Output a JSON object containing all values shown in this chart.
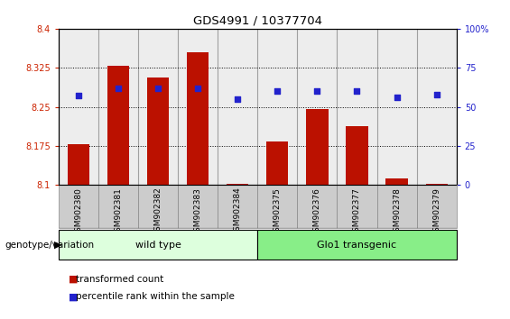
{
  "title": "GDS4991 / 10377704",
  "samples": [
    "GSM902380",
    "GSM902381",
    "GSM902382",
    "GSM902383",
    "GSM902384",
    "GSM902375",
    "GSM902376",
    "GSM902377",
    "GSM902378",
    "GSM902379"
  ],
  "transformed_count": [
    8.178,
    8.328,
    8.307,
    8.355,
    8.102,
    8.183,
    8.245,
    8.213,
    8.112,
    8.103
  ],
  "percentile_rank": [
    57,
    62,
    62,
    62,
    55,
    60,
    60,
    60,
    56,
    58
  ],
  "ylim_left": [
    8.1,
    8.4
  ],
  "ylim_right": [
    0,
    100
  ],
  "yticks_left": [
    8.1,
    8.175,
    8.25,
    8.325,
    8.4
  ],
  "yticks_right": [
    0,
    25,
    50,
    75,
    100
  ],
  "grid_vals": [
    8.175,
    8.25,
    8.325
  ],
  "bar_color": "#bb1100",
  "dot_color": "#2222cc",
  "bar_width": 0.55,
  "groups": [
    {
      "label": "wild type",
      "indices": [
        0,
        1,
        2,
        3,
        4
      ],
      "color_light": "#ddffdd",
      "color_dark": "#55cc55"
    },
    {
      "label": "Glo1 transgenic",
      "indices": [
        5,
        6,
        7,
        8,
        9
      ],
      "color_light": "#88ee88",
      "color_dark": "#33bb33"
    }
  ],
  "group_label": "genotype/variation",
  "legend_items": [
    {
      "color": "#bb1100",
      "label": "transformed count"
    },
    {
      "color": "#2222cc",
      "label": "percentile rank within the sample"
    }
  ],
  "tick_color_left": "#cc2200",
  "tick_color_right": "#2222cc",
  "cell_bg_color": "#cccccc",
  "cell_edge_color": "#888888"
}
